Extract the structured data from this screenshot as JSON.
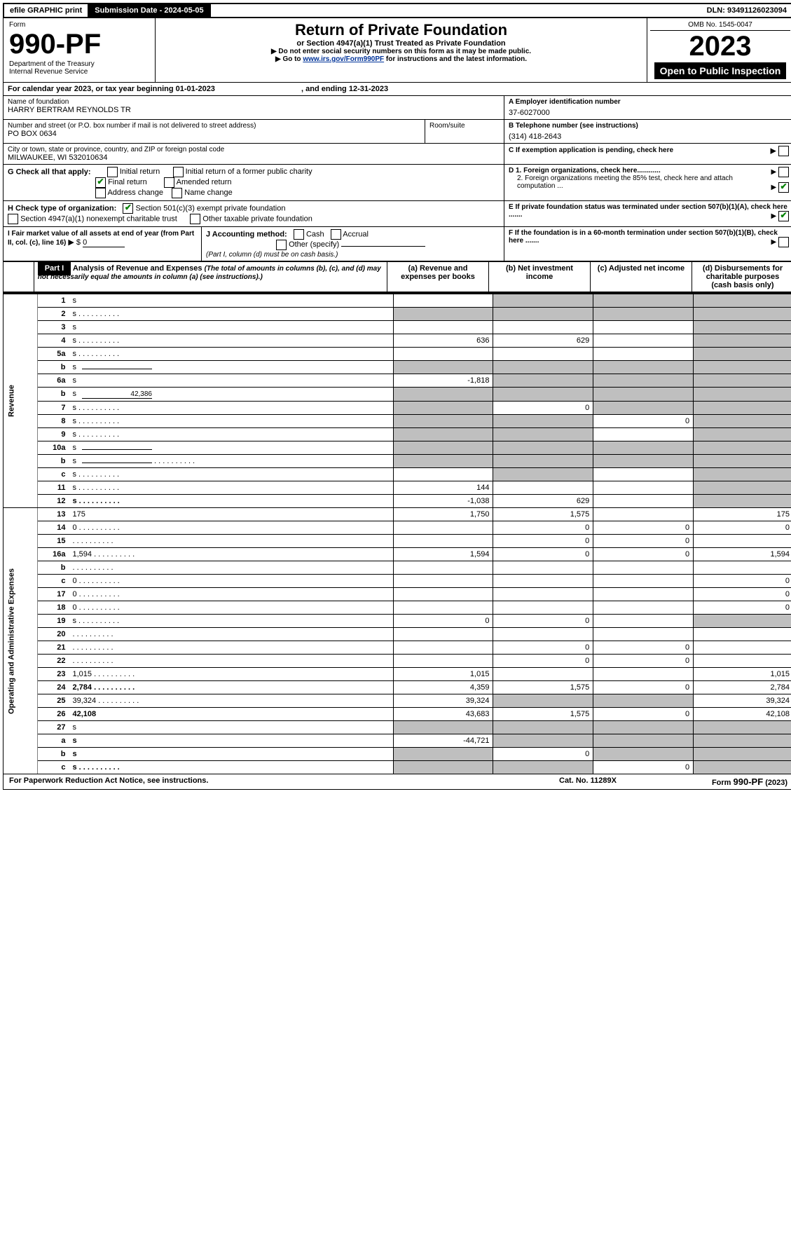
{
  "topbar": {
    "efile": "efile GRAPHIC print",
    "subdate_label": "Submission Date - ",
    "subdate": "2024-05-05",
    "dln_label": "DLN: ",
    "dln": "93491126023094"
  },
  "header": {
    "form_word": "Form",
    "form_num": "990-PF",
    "dept": "Department of the Treasury",
    "irs": "Internal Revenue Service",
    "title": "Return of Private Foundation",
    "subtitle": "or Section 4947(a)(1) Trust Treated as Private Foundation",
    "note1": "Do not enter social security numbers on this form as it may be made public.",
    "note2_pre": "Go to ",
    "note2_link": "www.irs.gov/Form990PF",
    "note2_post": " for instructions and the latest information.",
    "omb": "OMB No. 1545-0047",
    "year": "2023",
    "inspection": "Open to Public Inspection"
  },
  "calrow": {
    "text_pre": "For calendar year 2023, or tax year beginning ",
    "begin": "01-01-2023",
    "mid": ", and ending ",
    "end": "12-31-2023"
  },
  "meta": {
    "name_label": "Name of foundation",
    "name": "HARRY BERTRAM REYNOLDS TR",
    "addr_label": "Number and street (or P.O. box number if mail is not delivered to street address)",
    "addr": "PO BOX 0634",
    "room_label": "Room/suite",
    "city_label": "City or town, state or province, country, and ZIP or foreign postal code",
    "city": "MILWAUKEE, WI  532010634",
    "ein_label": "A Employer identification number",
    "ein": "37-6027000",
    "phone_label": "B Telephone number (see instructions)",
    "phone": "(314) 418-2643",
    "c_label": "C If exemption application is pending, check here",
    "g_label": "G Check all that apply:",
    "g_opts": [
      "Initial return",
      "Final return",
      "Address change",
      "Initial return of a former public charity",
      "Amended return",
      "Name change"
    ],
    "g_checked": "Final return",
    "d1": "D 1. Foreign organizations, check here............",
    "d2": "2. Foreign organizations meeting the 85% test, check here and attach computation ...",
    "e": "E  If private foundation status was terminated under section 507(b)(1)(A), check here .......",
    "h_label": "H Check type of organization:",
    "h_opts": [
      "Section 501(c)(3) exempt private foundation",
      "Section 4947(a)(1) nonexempt charitable trust",
      "Other taxable private foundation"
    ],
    "f": "F  If the foundation is in a 60-month termination under section 507(b)(1)(B), check here .......",
    "i_pre": "I Fair market value of all assets at end of year (from Part II, col. (c), line 16)",
    "i_val": "0",
    "j_label": "J Accounting method:",
    "j_opts": [
      "Cash",
      "Accrual",
      "Other (specify)"
    ],
    "j_note": "(Part I, column (d) must be on cash basis.)"
  },
  "part1": {
    "label": "Part I",
    "title": "Analysis of Revenue and Expenses",
    "title_note": " (The total of amounts in columns (b), (c), and (d) may not necessarily equal the amounts in column (a) (see instructions).)",
    "col_a": "(a)  Revenue and expenses per books",
    "col_b": "(b)  Net investment income",
    "col_c": "(c)  Adjusted net income",
    "col_d": "(d)  Disbursements for charitable purposes (cash basis only)",
    "side_rev": "Revenue",
    "side_exp": "Operating and Administrative Expenses"
  },
  "lines": [
    {
      "n": "1",
      "d": "s",
      "a": "",
      "b": "s",
      "c": "s"
    },
    {
      "n": "2",
      "d": "s",
      "dots": true,
      "a": "s",
      "b": "s",
      "c": "s",
      "bold_not": true
    },
    {
      "n": "3",
      "d": "s",
      "a": "",
      "b": "",
      "c": ""
    },
    {
      "n": "4",
      "d": "s",
      "dots": true,
      "a": "636",
      "b": "629",
      "c": ""
    },
    {
      "n": "5a",
      "d": "s",
      "dots": true,
      "a": "",
      "b": "",
      "c": ""
    },
    {
      "n": "b",
      "d": "s",
      "inl": true,
      "a": "s",
      "b": "s",
      "c": "s"
    },
    {
      "n": "6a",
      "d": "s",
      "a": "-1,818",
      "b": "s",
      "c": "s"
    },
    {
      "n": "b",
      "d": "s",
      "inl": true,
      "inlv": "42,386",
      "a": "s",
      "b": "s",
      "c": "s"
    },
    {
      "n": "7",
      "d": "s",
      "dots": true,
      "a": "s",
      "b": "0",
      "c": "s"
    },
    {
      "n": "8",
      "d": "s",
      "dots": true,
      "a": "s",
      "b": "s",
      "c": "0"
    },
    {
      "n": "9",
      "d": "s",
      "dots": true,
      "a": "s",
      "b": "s",
      "c": ""
    },
    {
      "n": "10a",
      "d": "s",
      "inl": true,
      "a": "s",
      "b": "s",
      "c": "s"
    },
    {
      "n": "b",
      "d": "s",
      "dots": true,
      "inl": true,
      "a": "s",
      "b": "s",
      "c": "s"
    },
    {
      "n": "c",
      "d": "s",
      "dots": true,
      "a": "",
      "b": "s",
      "c": ""
    },
    {
      "n": "11",
      "d": "s",
      "dots": true,
      "a": "144",
      "b": "",
      "c": ""
    },
    {
      "n": "12",
      "d": "s",
      "dots": true,
      "bold": true,
      "a": "-1,038",
      "b": "629",
      "c": ""
    },
    {
      "n": "13",
      "d": "175",
      "a": "1,750",
      "b": "1,575",
      "c": ""
    },
    {
      "n": "14",
      "d": "0",
      "dots": true,
      "a": "",
      "b": "0",
      "c": "0"
    },
    {
      "n": "15",
      "d": "",
      "dots": true,
      "a": "",
      "b": "0",
      "c": "0"
    },
    {
      "n": "16a",
      "d": "1,594",
      "dots": true,
      "a": "1,594",
      "b": "0",
      "c": "0"
    },
    {
      "n": "b",
      "d": "",
      "dots": true,
      "a": "",
      "b": "",
      "c": ""
    },
    {
      "n": "c",
      "d": "0",
      "dots": true,
      "a": "",
      "b": "",
      "c": ""
    },
    {
      "n": "17",
      "d": "0",
      "dots": true,
      "a": "",
      "b": "",
      "c": ""
    },
    {
      "n": "18",
      "d": "0",
      "dots": true,
      "a": "",
      "b": "",
      "c": ""
    },
    {
      "n": "19",
      "d": "s",
      "dots": true,
      "a": "0",
      "b": "0",
      "c": ""
    },
    {
      "n": "20",
      "d": "",
      "dots": true,
      "a": "",
      "b": "",
      "c": ""
    },
    {
      "n": "21",
      "d": "",
      "dots": true,
      "a": "",
      "b": "0",
      "c": "0"
    },
    {
      "n": "22",
      "d": "",
      "dots": true,
      "a": "",
      "b": "0",
      "c": "0"
    },
    {
      "n": "23",
      "d": "1,015",
      "dots": true,
      "a": "1,015",
      "b": "",
      "c": ""
    },
    {
      "n": "24",
      "d": "2,784",
      "dots": true,
      "bold": true,
      "a": "4,359",
      "b": "1,575",
      "c": "0"
    },
    {
      "n": "25",
      "d": "39,324",
      "dots": true,
      "a": "39,324",
      "b": "s",
      "c": "s"
    },
    {
      "n": "26",
      "d": "42,108",
      "bold": true,
      "a": "43,683",
      "b": "1,575",
      "c": "0"
    },
    {
      "n": "27",
      "d": "s",
      "a": "s",
      "b": "s",
      "c": "s"
    },
    {
      "n": "a",
      "d": "s",
      "bold": true,
      "a": "-44,721",
      "b": "s",
      "c": "s"
    },
    {
      "n": "b",
      "d": "s",
      "bold": true,
      "a": "s",
      "b": "0",
      "c": "s"
    },
    {
      "n": "c",
      "d": "s",
      "dots": true,
      "bold": true,
      "a": "s",
      "b": "s",
      "c": "0"
    }
  ],
  "footer": {
    "left": "For Paperwork Reduction Act Notice, see instructions.",
    "mid": "Cat. No. 11289X",
    "right": "Form 990-PF (2023)"
  }
}
